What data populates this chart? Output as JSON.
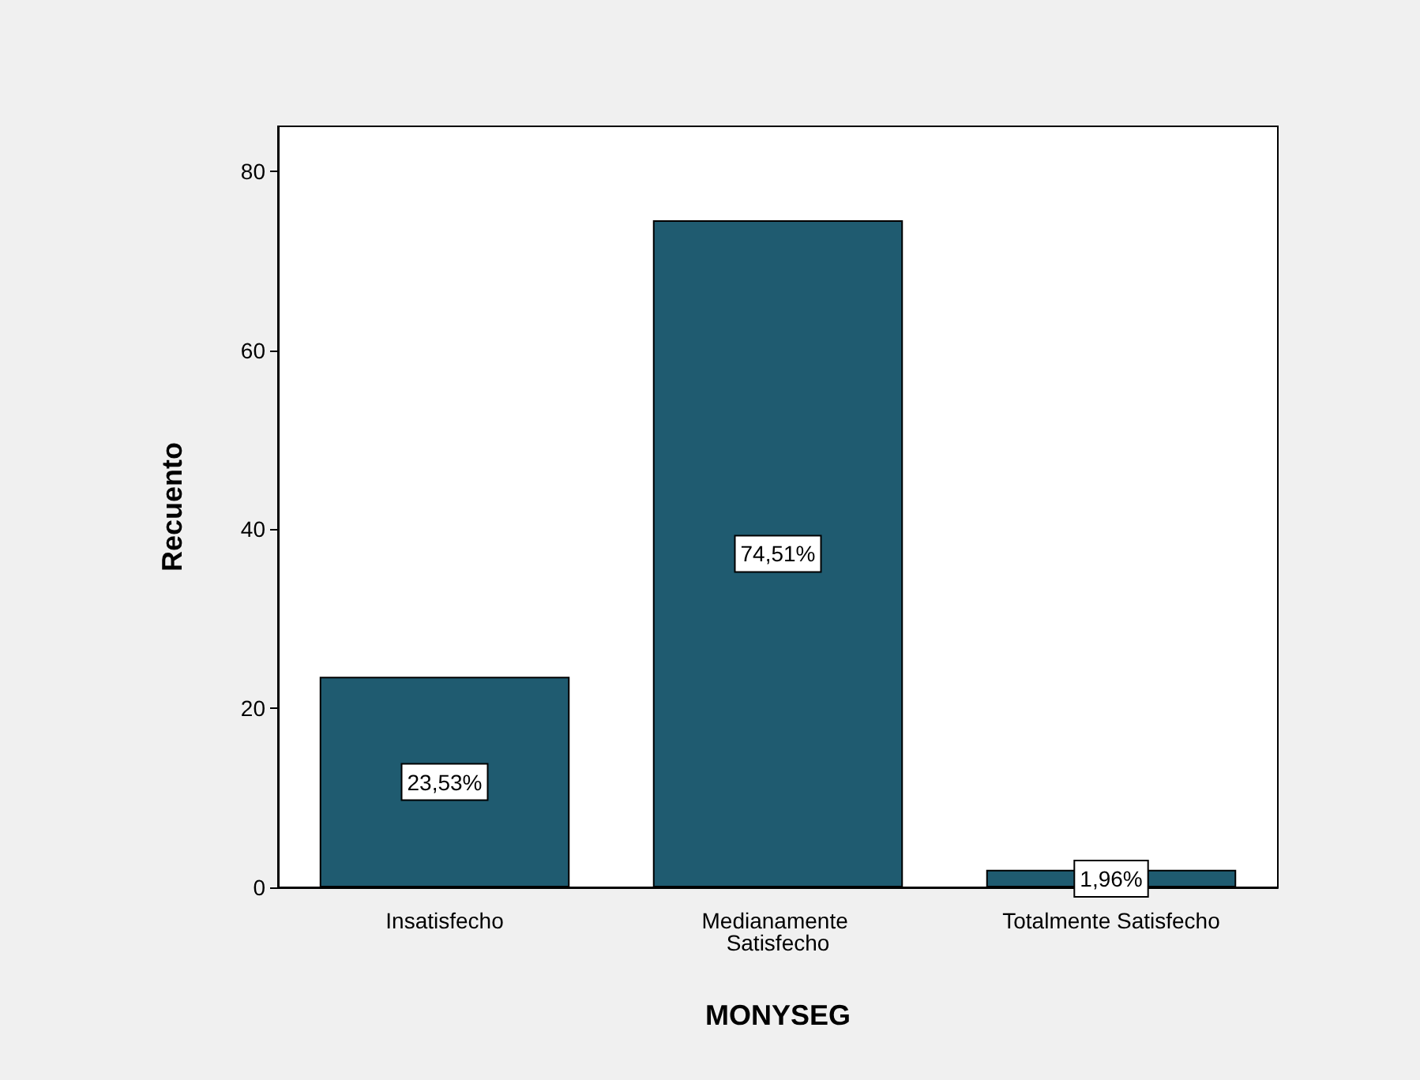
{
  "chart_data": {
    "type": "bar",
    "xlabel": "MONYSEG",
    "ylabel": "Recuento",
    "categories": [
      "Insatisfecho",
      "Medianamente Satisfecho",
      "Totalmente Satisfecho"
    ],
    "values": [
      23.53,
      74.51,
      1.96
    ],
    "value_labels": [
      "23,53%",
      "74,51%",
      "1,96%"
    ],
    "color": "#1f5b70",
    "ylim": [
      0,
      85
    ],
    "yticks": [
      0,
      20,
      40,
      60,
      80
    ],
    "grid": false
  }
}
